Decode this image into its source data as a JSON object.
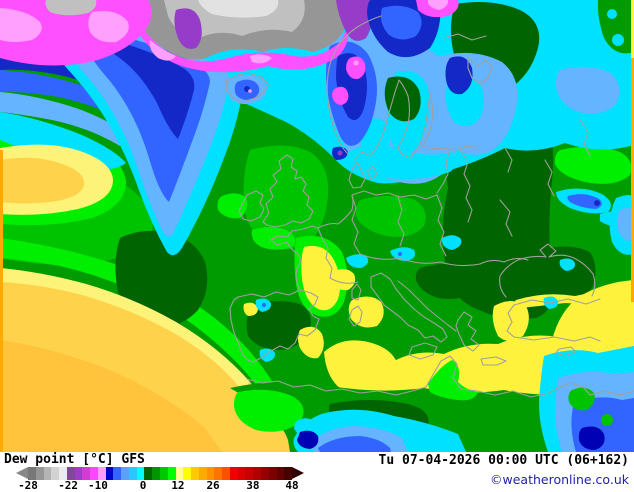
{
  "map": {
    "parameter": "Dew point [°C]",
    "model": "GFS",
    "title": "Dew point [°C] GFS",
    "valid_time": "Tu 07-04-2026 00:00 UTC (06+162)",
    "copyright": "©weatheronline.co.uk"
  },
  "legend": {
    "unit": "°C",
    "ticks": [
      {
        "label": "-28",
        "pos_pct": 0
      },
      {
        "label": "-22",
        "pos_pct": 15.2
      },
      {
        "label": "-10",
        "pos_pct": 26.5
      },
      {
        "label": "0",
        "pos_pct": 43.6
      },
      {
        "label": "12",
        "pos_pct": 56.8
      },
      {
        "label": "26",
        "pos_pct": 70.1
      },
      {
        "label": "38",
        "pos_pct": 85.2
      },
      {
        "label": "48",
        "pos_pct": 100
      }
    ],
    "segment_colors": [
      "#787878",
      "#969696",
      "#b4b4b4",
      "#d2d2d2",
      "#ebebeb",
      "#82469b",
      "#a03cc8",
      "#d23cd2",
      "#ff46ff",
      "#ff9bff",
      "#0000c8",
      "#3264ff",
      "#5aa0ff",
      "#28c8ff",
      "#00ffff",
      "#006400",
      "#009600",
      "#00c800",
      "#00ff00",
      "#ffff96",
      "#ffff00",
      "#ffc800",
      "#ffaa00",
      "#ff9100",
      "#ff7300",
      "#ff5000",
      "#f00000",
      "#dc0000",
      "#c80000",
      "#b00000",
      "#960000",
      "#7d0000",
      "#640000",
      "#460000"
    ],
    "arrow_left_color": "#888888",
    "arrow_right_color": "#320000"
  },
  "palette": {
    "green_dark": "#006400",
    "green": "#009b00",
    "green_mid": "#00c300",
    "green_bright": "#00ef00",
    "cyan": "#00e1ff",
    "light_blue": "#64b4ff",
    "blue": "#3264ff",
    "dark_blue": "#1428c8",
    "navy": "#0000b4",
    "magenta": "#ff50ff",
    "pink": "#ffa0ff",
    "purple": "#963cc8",
    "ice_gray_dark": "#969696",
    "ice_gray": "#c0c0c0",
    "ice_gray_light": "#e2e2e2",
    "yellow_pale": "#fdf378",
    "yellow": "#fff23c",
    "orange_yellow": "#ffd24b",
    "orange_yellow_deep": "#ffc43c",
    "orange": "#ffaa00",
    "coast_gray": "#a0a0a0",
    "link_blue": "#2222aa"
  }
}
